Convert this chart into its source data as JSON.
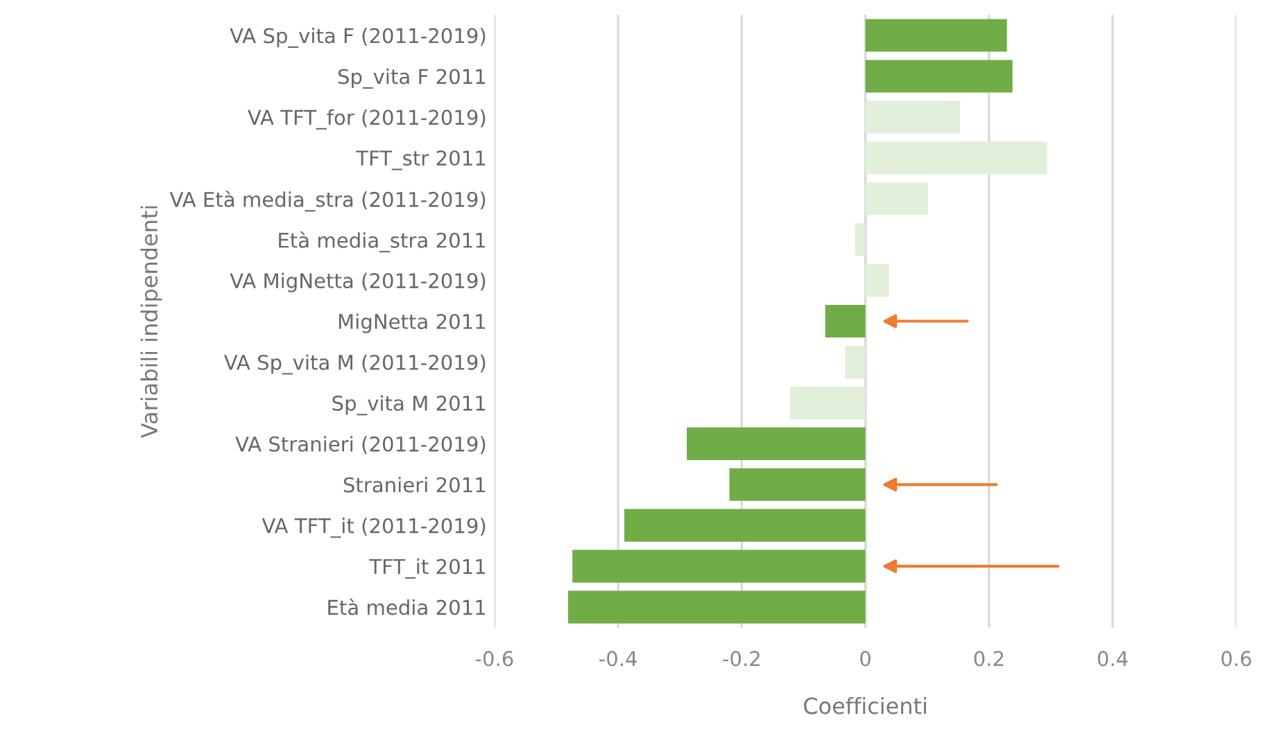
{
  "chart_data": {
    "type": "bar",
    "orientation": "horizontal",
    "xlabel": "Coefficienti",
    "ylabel": "Variabili indipendenti",
    "categories": [
      "VA Sp_vita F (2011-2019)",
      "Sp_vita F 2011",
      "VA TFT_for (2011-2019)",
      "TFT_str 2011",
      "VA Età media_stra (2011-2019)",
      "Età media_stra 2011",
      "VA MigNetta (2011-2019)",
      "MigNetta 2011",
      "VA Sp_vita M (2011-2019)",
      "Sp_vita M 2011",
      "VA Stranieri (2011-2019)",
      "Stranieri 2011",
      "VA TFT_it (2011-2019)",
      "TFT_it 2011",
      "Età media 2011"
    ],
    "values": [
      0.229,
      0.238,
      0.153,
      0.294,
      0.101,
      -0.017,
      0.038,
      -0.065,
      -0.033,
      -0.122,
      -0.289,
      -0.22,
      -0.39,
      -0.474,
      -0.481
    ],
    "colors": [
      "#70ad47",
      "#70ad47",
      "#e2efda",
      "#e2efda",
      "#e2efda",
      "#e2efda",
      "#e2efda",
      "#70ad47",
      "#e2efda",
      "#e2efda",
      "#70ad47",
      "#70ad47",
      "#70ad47",
      "#70ad47",
      "#70ad47"
    ],
    "xlim": [
      -0.6,
      0.6
    ],
    "xticks": [
      {
        "value": -0.6,
        "label": "-0.6"
      },
      {
        "value": -0.4,
        "label": "-0.4"
      },
      {
        "value": -0.2,
        "label": "-0.2"
      },
      0,
      0.2,
      0.4,
      0.6
    ],
    "grid": "x"
  }
}
